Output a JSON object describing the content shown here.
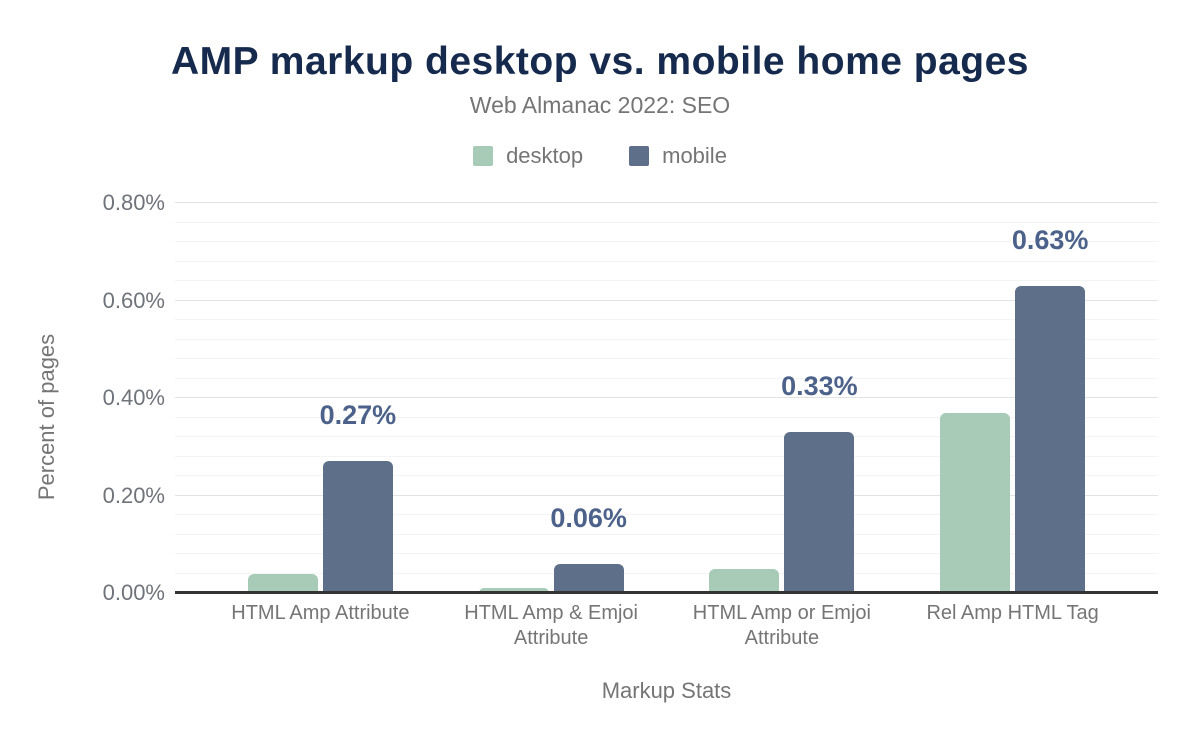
{
  "chart_data": {
    "type": "bar",
    "title": "AMP markup desktop vs. mobile home pages",
    "subtitle": "Web Almanac 2022: SEO",
    "xlabel": "Markup Stats",
    "ylabel": "Percent of pages",
    "categories": [
      "HTML Amp Attribute",
      "HTML Amp & Emjoi Attribute",
      "HTML Amp or Emjoi Attribute",
      "Rel Amp HTML Tag"
    ],
    "series": [
      {
        "name": "desktop",
        "color": "#a8cbb8",
        "values": [
          0.04,
          0.01,
          0.05,
          0.37
        ]
      },
      {
        "name": "mobile",
        "color": "#5e7089",
        "values": [
          0.27,
          0.06,
          0.33,
          0.63
        ]
      }
    ],
    "bar_labels": {
      "series": "mobile",
      "values": [
        "0.27%",
        "0.06%",
        "0.33%",
        "0.63%"
      ]
    },
    "y_ticks": [
      {
        "label": "0.00%",
        "value": 0.0
      },
      {
        "label": "0.20%",
        "value": 0.2
      },
      {
        "label": "0.40%",
        "value": 0.4
      },
      {
        "label": "0.60%",
        "value": 0.6
      },
      {
        "label": "0.80%",
        "value": 0.8
      }
    ],
    "ylim": [
      0,
      0.8
    ],
    "y_minor_step": 0.04,
    "grid": true,
    "legend_position": "top",
    "colors": {
      "title": "#152a4d",
      "muted_text": "#757575",
      "data_label": "#4c628a",
      "baseline": "#333333",
      "major_grid": "#e2e2e2",
      "minor_grid": "#f4f4f4",
      "background": "#ffffff"
    }
  }
}
